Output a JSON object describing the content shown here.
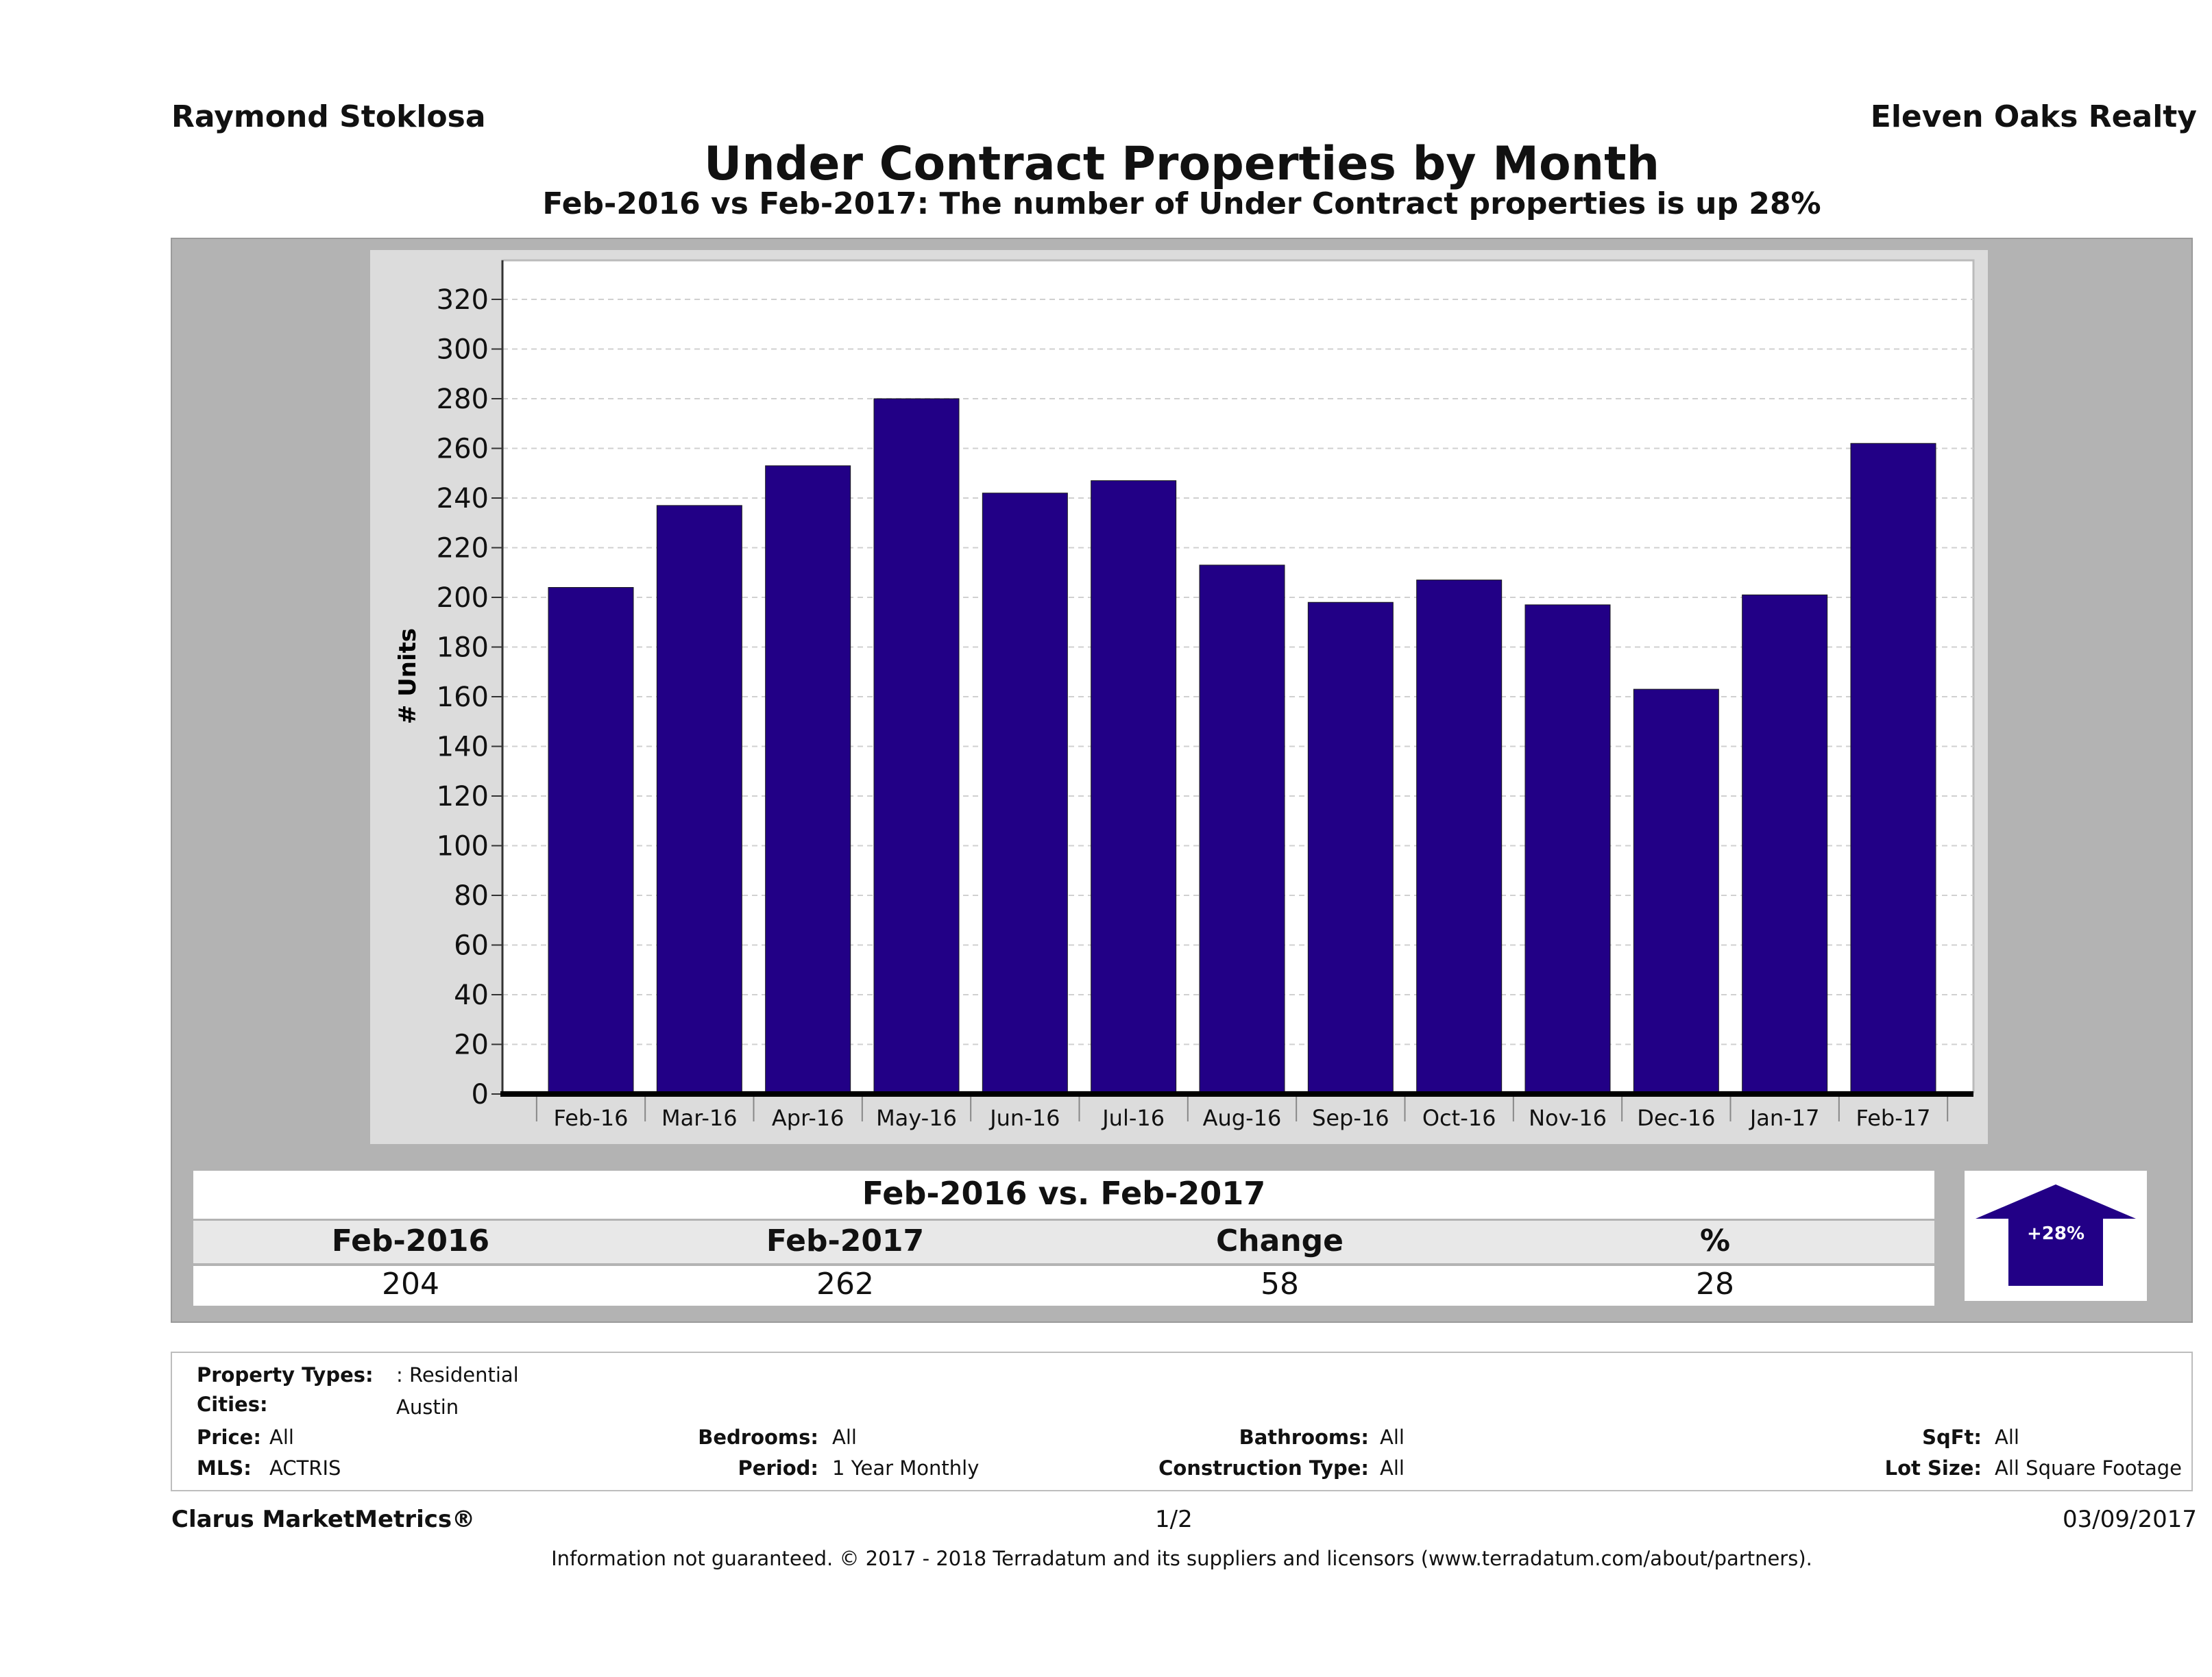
{
  "header": {
    "agent_name": "Raymond Stoklosa",
    "brokerage": "Eleven Oaks Realty"
  },
  "colors": {
    "bar": "#220086",
    "arrow": "#220086",
    "panel": "#b3b3b3"
  },
  "chart_data": {
    "type": "bar",
    "title": "Under Contract Properties by Month",
    "subtitle": "Feb-2016 vs Feb-2017: The number of Under Contract  properties is up 28%",
    "xlabel": "",
    "ylabel": "# Units",
    "categories": [
      "Feb-16",
      "Mar-16",
      "Apr-16",
      "May-16",
      "Jun-16",
      "Jul-16",
      "Aug-16",
      "Sep-16",
      "Oct-16",
      "Nov-16",
      "Dec-16",
      "Jan-17",
      "Feb-17"
    ],
    "values": [
      204,
      237,
      253,
      280,
      242,
      247,
      213,
      198,
      207,
      197,
      163,
      201,
      262
    ],
    "ylim": [
      0,
      320
    ],
    "yticks": [
      0,
      20,
      40,
      60,
      80,
      100,
      120,
      140,
      160,
      180,
      200,
      220,
      240,
      260,
      280,
      300,
      320
    ],
    "grid": true,
    "legend": "none"
  },
  "summary": {
    "title": "Feb-2016 vs. Feb-2017",
    "headers": [
      "Feb-2016",
      "Feb-2017",
      "Change",
      "%"
    ],
    "values": [
      "204",
      "262",
      "58",
      "28"
    ],
    "arrow_label": "+28%",
    "arrow_direction": "up",
    "arrow_icon": "up-arrow-icon"
  },
  "filters": {
    "property_types_label": "Property Types:",
    "property_types_value": ": Residential",
    "cities_label": "Cities:",
    "cities_value": "Austin",
    "price_label": "Price:",
    "price_value": "All",
    "mls_label": "MLS:",
    "mls_value": "ACTRIS",
    "bedrooms_label": "Bedrooms:",
    "bedrooms_value": "All",
    "period_label": "Period:",
    "period_value": "1 Year Monthly",
    "bathrooms_label": "Bathrooms:",
    "bathrooms_value": "All",
    "construction_label": "Construction Type:",
    "construction_value": "All",
    "sqft_label": "SqFt:",
    "sqft_value": "All",
    "lot_label": "Lot Size:",
    "lot_value": "All Square Footage"
  },
  "footer": {
    "product": "Clarus MarketMetrics®",
    "page": "1/2",
    "date": "03/09/2017",
    "disclaimer": "Information not guaranteed. © 2017 - 2018 Terradatum and its suppliers and licensors (www.terradatum.com/about/partners)."
  }
}
